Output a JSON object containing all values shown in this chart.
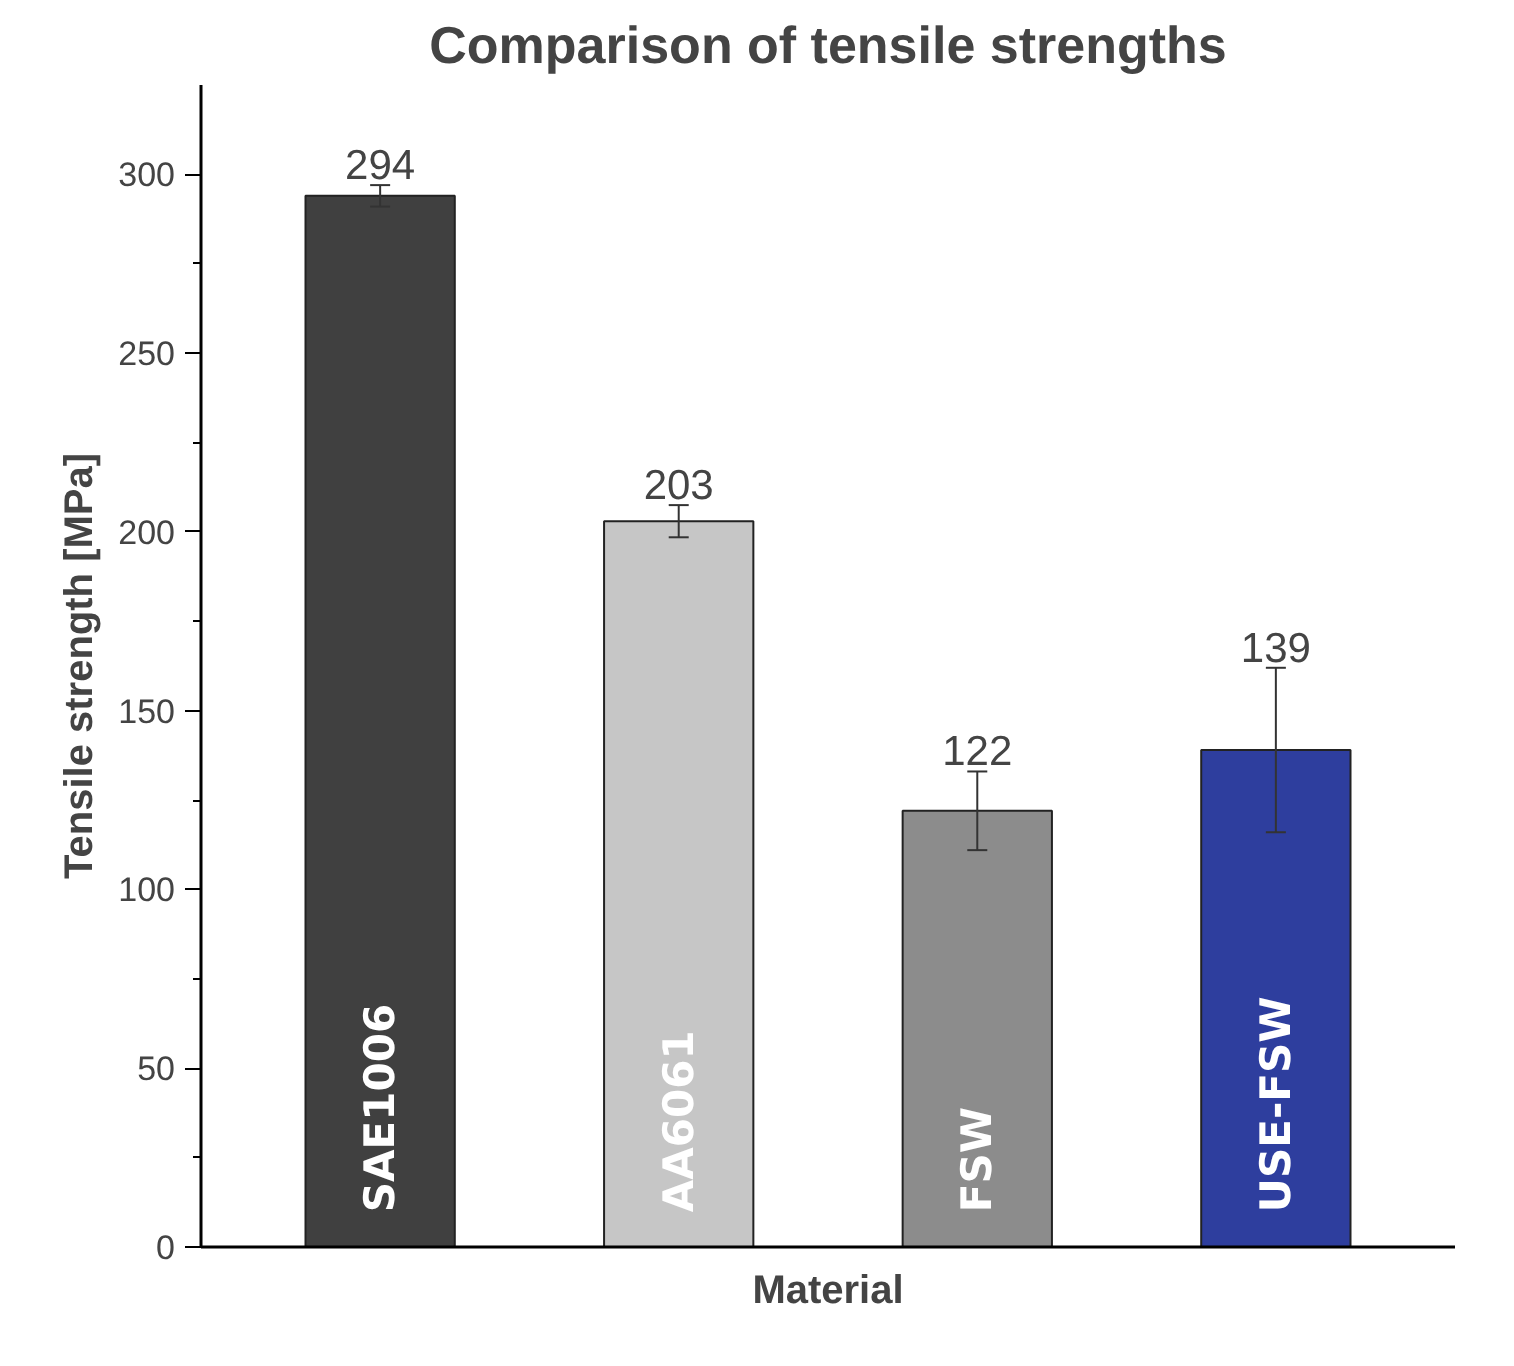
{
  "chart_data": {
    "type": "bar",
    "title": "Comparison of tensile strengths",
    "xlabel": "Material",
    "ylabel": "Tensile strength [MPa]",
    "categories": [
      "SAE1006",
      "AA6061",
      "FSW",
      "USE-FSW"
    ],
    "values": [
      294,
      203,
      122,
      139
    ],
    "colors": [
      "#404040",
      "#c6c6c6",
      "#8c8c8c",
      "#2e3e9e"
    ],
    "errors": [
      3,
      4.5,
      11,
      23
    ],
    "data_labels": true,
    "ylim": [
      0,
      325
    ],
    "yticks": [
      0,
      50,
      100,
      150,
      200,
      250,
      300
    ],
    "grid": false,
    "tick_labels": "y"
  }
}
